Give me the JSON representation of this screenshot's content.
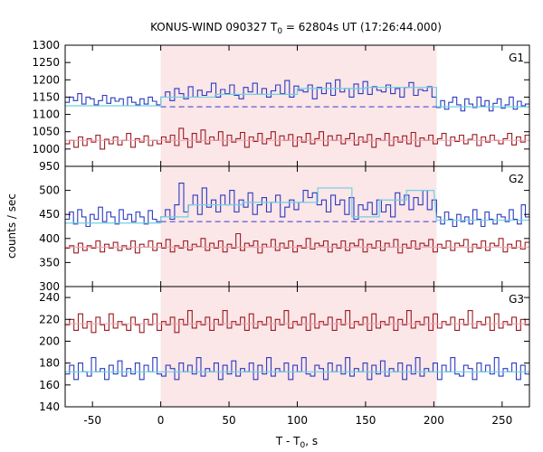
{
  "chart_data": {
    "type": "line",
    "title": {
      "prefix": "KONUS-WIND 090327 T",
      "sub": "0",
      "suffix": " = 62804s UT (17:26:44.000)"
    },
    "xlabel": {
      "prefix": "T - T",
      "sub": "0",
      "suffix": ", s"
    },
    "ylabel": "counts / sec",
    "xlim": [
      -70,
      270
    ],
    "xticks": [
      -50,
      0,
      50,
      100,
      150,
      200,
      250
    ],
    "highlight_interval": [
      0,
      202
    ],
    "colors": {
      "highlight": "#fbe6e8",
      "blue": "#2b3bbf",
      "red": "#9a1b1f",
      "fit_cyan": "#6fd0e0",
      "fit_pink": "#f0a0b0",
      "dash_blue": "#3a3acc"
    },
    "panels": [
      {
        "name": "G1",
        "ylim": [
          950,
          1300
        ],
        "yticks": [
          950,
          1000,
          1050,
          1100,
          1150,
          1200,
          1250,
          1300
        ],
        "blue_series": {
          "pre": [
            1135,
            1150,
            1140,
            1160,
            1130,
            1150,
            1145,
            1128,
            1140,
            1155,
            1132,
            1148,
            1138,
            1145,
            1125,
            1150,
            1135,
            1128,
            1145,
            1130,
            1150,
            1138,
            1128
          ],
          "mid": [
            1150,
            1165,
            1140,
            1175,
            1160,
            1145,
            1180,
            1150,
            1170,
            1155,
            1165,
            1190,
            1150,
            1172,
            1160,
            1185,
            1155,
            1145,
            1178,
            1165,
            1190,
            1158,
            1175,
            1150,
            1168,
            1185,
            1160,
            1198,
            1150,
            1182,
            1170,
            1165,
            1185,
            1145,
            1178,
            1160,
            1190,
            1155,
            1200,
            1165,
            1175,
            1150,
            1188,
            1160,
            1195,
            1158,
            1180,
            1170,
            1165,
            1185,
            1160,
            1175,
            1150,
            1178,
            1192,
            1155,
            1172,
            1168,
            1180,
            1150
          ],
          "post": [
            1120,
            1140,
            1115,
            1135,
            1150,
            1128,
            1110,
            1145,
            1130,
            1120,
            1150,
            1125,
            1140,
            1110,
            1132,
            1145,
            1118,
            1128,
            1150,
            1115,
            1138,
            1125,
            1130
          ]
        },
        "red_series": [
          1015,
          1025,
          1005,
          1035,
          1010,
          1030,
          1020,
          1040,
          1000,
          1028,
          1015,
          1035,
          1012,
          1025,
          1045,
          1005,
          1030,
          1020,
          1038,
          1010,
          1025,
          1015,
          1035,
          1020,
          1040,
          1010,
          1060,
          1030,
          1005,
          1045,
          1020,
          1055,
          1015,
          1035,
          1025,
          1050,
          1010,
          1040,
          1020,
          1030,
          1048,
          1005,
          1035,
          1022,
          1045,
          1015,
          1030,
          1050,
          1010,
          1038,
          1025,
          1042,
          1008,
          1035,
          1020,
          1045,
          1015,
          1030,
          1050,
          1010,
          1038,
          1025,
          1040,
          1015,
          1030,
          1045,
          1012,
          1035,
          1020,
          1042,
          1005,
          1030,
          1025,
          1045,
          1010,
          1035,
          1020,
          1038,
          1015,
          1048,
          1008,
          1032,
          1025,
          1040,
          1015,
          1030,
          1045,
          1010,
          1035,
          1022,
          1040,
          1015,
          1028,
          1042,
          1010,
          1035,
          1020,
          1040,
          1025,
          1015,
          1030,
          1045,
          1012,
          1035,
          1020,
          1040
        ],
        "blue_fit": {
          "pre": 1125,
          "mid_segments": [
            [
              0,
              40,
              1150
            ],
            [
              40,
              100,
              1158
            ],
            [
              100,
              150,
              1175
            ],
            [
              150,
              202,
              1178
            ]
          ],
          "post": 1122,
          "dashed": 1122
        },
        "red_fit": 1025
      },
      {
        "name": "G2",
        "ylim": [
          300,
          550
        ],
        "yticks": [
          300,
          350,
          400,
          450,
          500
        ],
        "blue_series": {
          "pre": [
            440,
            455,
            430,
            460,
            445,
            425,
            450,
            440,
            465,
            435,
            455,
            445,
            430,
            460,
            440,
            450,
            435,
            455,
            445,
            430,
            458,
            440,
            435
          ],
          "mid": [
            445,
            460,
            440,
            470,
            515,
            455,
            470,
            490,
            450,
            505,
            465,
            480,
            455,
            490,
            470,
            500,
            455,
            480,
            465,
            495,
            450,
            470,
            485,
            455,
            475,
            490,
            445,
            465,
            480,
            460,
            475,
            500,
            485,
            495,
            470,
            480,
            455,
            490,
            470,
            480,
            450,
            485,
            440,
            470,
            460,
            475,
            450,
            480,
            455,
            470,
            445,
            495,
            470,
            490,
            460,
            485,
            470,
            500,
            460,
            480
          ],
          "post": [
            445,
            430,
            455,
            440,
            425,
            450,
            435,
            445,
            430,
            460,
            440,
            425,
            455,
            440,
            430,
            450,
            445,
            435,
            460,
            440,
            430,
            470,
            445
          ]
        },
        "red_series": [
          380,
          385,
          370,
          390,
          375,
          385,
          380,
          395,
          372,
          388,
          380,
          392,
          375,
          385,
          378,
          395,
          370,
          388,
          382,
          395,
          375,
          390,
          380,
          398,
          372,
          385,
          380,
          395,
          376,
          388,
          383,
          400,
          375,
          390,
          380,
          395,
          372,
          388,
          380,
          410,
          375,
          390,
          385,
          395,
          370,
          388,
          382,
          398,
          375,
          390,
          380,
          395,
          372,
          385,
          380,
          400,
          378,
          390,
          385,
          395,
          372,
          388,
          380,
          395,
          375,
          390,
          385,
          398,
          372,
          388,
          380,
          395,
          375,
          390,
          382,
          398,
          370,
          388,
          380,
          395,
          378,
          390,
          385,
          398,
          372,
          388,
          380,
          395,
          375,
          390,
          385,
          398,
          372,
          388,
          380,
          395,
          375,
          390,
          385,
          400,
          372,
          388,
          380,
          395,
          378,
          392
        ],
        "blue_fit": {
          "pre": 432,
          "mid_segments": [
            [
              0,
              20,
              445
            ],
            [
              20,
              60,
              470
            ],
            [
              60,
              115,
              475
            ],
            [
              115,
              140,
              505
            ],
            [
              140,
              160,
              445
            ],
            [
              160,
              180,
              480
            ],
            [
              180,
              200,
              500
            ]
          ],
          "post": 438,
          "dashed": 435
        },
        "red_fit": 382
      },
      {
        "name": "G3",
        "ylim": [
          140,
          250
        ],
        "yticks": [
          140,
          160,
          180,
          200,
          220,
          240
        ],
        "blue_series": [
          170,
          178,
          165,
          180,
          172,
          168,
          185,
          172,
          175,
          165,
          178,
          170,
          182,
          168,
          175,
          170,
          180,
          165,
          178,
          172,
          185,
          170,
          168,
          178,
          175,
          165,
          180,
          172,
          178,
          170,
          185,
          168,
          175,
          172,
          180,
          165,
          178,
          170,
          182,
          168,
          175,
          172,
          180,
          165,
          178,
          170,
          185,
          168,
          175,
          172,
          180,
          165,
          178,
          172,
          185,
          170,
          168,
          178,
          175,
          165,
          180,
          172,
          178,
          170,
          185,
          168,
          175,
          172,
          180,
          165,
          178,
          170,
          182,
          168,
          175,
          172,
          180,
          165,
          178,
          170,
          185,
          168,
          175,
          172,
          180,
          165,
          178,
          172,
          185,
          170,
          168,
          178,
          175,
          165,
          180,
          172,
          178,
          170,
          185,
          168,
          175,
          172,
          180,
          165,
          178,
          170
        ],
        "red_series": [
          215,
          220,
          210,
          225,
          212,
          218,
          208,
          222,
          215,
          210,
          225,
          212,
          218,
          215,
          210,
          222,
          215,
          208,
          220,
          215,
          225,
          210,
          218,
          215,
          222,
          208,
          220,
          215,
          228,
          212,
          218,
          215,
          222,
          210,
          220,
          215,
          228,
          212,
          218,
          215,
          222,
          210,
          225,
          212,
          218,
          215,
          222,
          210,
          220,
          215,
          228,
          212,
          218,
          215,
          222,
          210,
          225,
          212,
          218,
          215,
          222,
          210,
          220,
          215,
          228,
          212,
          218,
          215,
          222,
          210,
          225,
          212,
          218,
          215,
          222,
          210,
          220,
          215,
          228,
          212,
          218,
          215,
          222,
          210,
          225,
          212,
          218,
          215,
          222,
          210,
          220,
          215,
          228,
          212,
          218,
          215,
          222,
          210,
          225,
          212,
          218,
          215,
          222,
          210,
          220,
          215
        ],
        "blue_fit": 172,
        "red_fit": 216
      }
    ]
  }
}
